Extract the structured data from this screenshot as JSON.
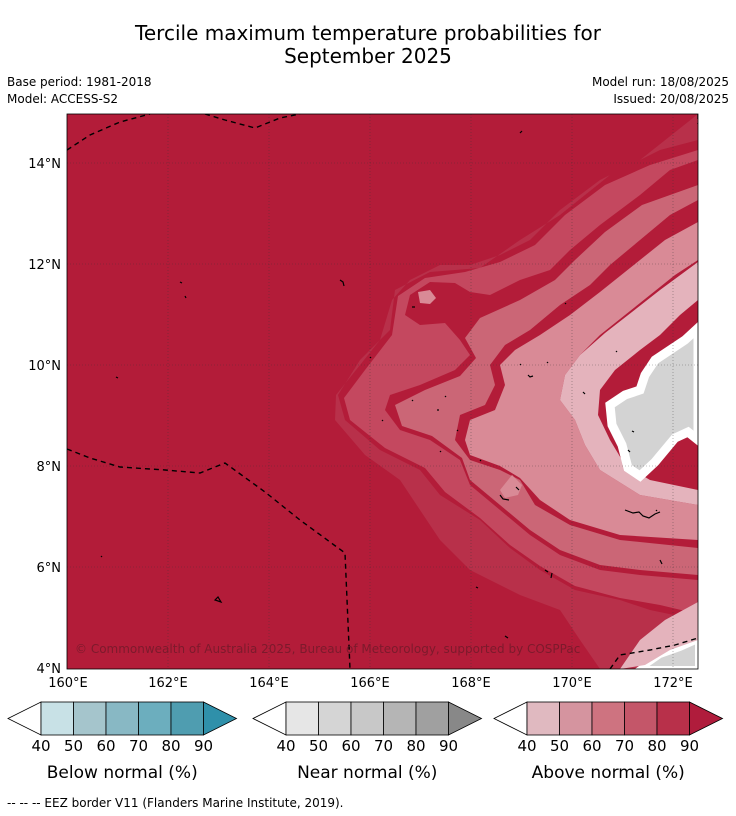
{
  "header": {
    "title_line1": "Tercile maximum temperature probabilities for",
    "title_line2": "September 2025",
    "base_period": "Base period: 1981-2018",
    "model": "Model: ACCESS-S2",
    "model_run": "Model run: 18/08/2025",
    "issued": "Issued: 20/08/2025"
  },
  "map": {
    "lat_labels": [
      "14°N",
      "12°N",
      "10°N",
      "8°N",
      "6°N",
      "4°N"
    ],
    "lon_labels": [
      "160°E",
      "162°E",
      "164°E",
      "166°E",
      "168°E",
      "170°E",
      "172°E"
    ],
    "copyright": "© Commonwealth of Australia 2025, Bureau of Meteorology, supported by COSPPac",
    "background_color": "#b31c39"
  },
  "colorbars": [
    {
      "id": "below",
      "label": "Below normal (%)",
      "ticks": [
        "40",
        "50",
        "60",
        "70",
        "80",
        "90"
      ],
      "colors": [
        "#ffffff",
        "#c8e1e6",
        "#a5c5cc",
        "#88b8c4",
        "#6caebe",
        "#4f9db0",
        "#2f90aa"
      ]
    },
    {
      "id": "near",
      "label": "Near normal (%)",
      "ticks": [
        "40",
        "50",
        "60",
        "70",
        "80",
        "90"
      ],
      "colors": [
        "#ffffff",
        "#e6e6e6",
        "#d5d5d5",
        "#c8c8c8",
        "#b5b5b5",
        "#a0a0a0",
        "#888888"
      ]
    },
    {
      "id": "above",
      "label": "Above normal (%)",
      "ticks": [
        "40",
        "50",
        "60",
        "70",
        "80",
        "90"
      ],
      "colors": [
        "#ffffff",
        "#e0b9c0",
        "#d5949f",
        "#ce7380",
        "#c45669",
        "#b8304a",
        "#b01c3c"
      ]
    }
  ],
  "footer": {
    "legend_text": "-- -- -- EEZ border V11 (Flanders Marine Institute, 2019)."
  }
}
